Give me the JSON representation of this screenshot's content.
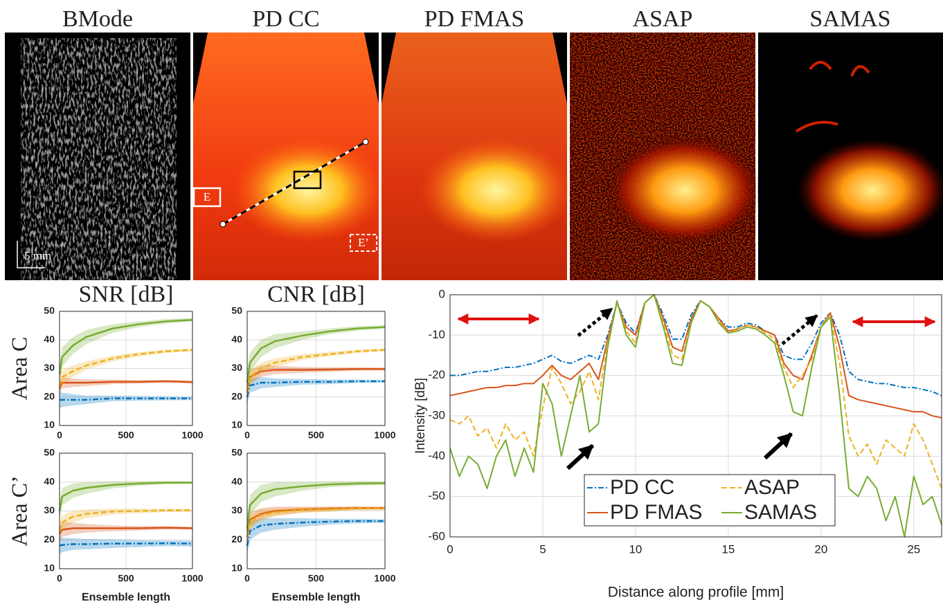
{
  "images": {
    "titles": [
      "BMode",
      "PD CC",
      "PD FMAS",
      "ASAP",
      "SAMAS"
    ],
    "scale_bar": "5 mm",
    "roi_e": "E",
    "roi_e_prime": "E’"
  },
  "chart_data": [
    {
      "type": "line",
      "title": "SNR [dB]",
      "ylabel": "Area C",
      "x": [
        0,
        20,
        100,
        200,
        400,
        600,
        800,
        1000
      ],
      "xlim": [
        0,
        1000
      ],
      "xticks": [
        0,
        500,
        1000
      ],
      "ylim": [
        10,
        50
      ],
      "yticks": [
        10,
        20,
        30,
        40,
        50
      ],
      "grid": true,
      "series": [
        {
          "color": "#0072bd",
          "style": "dashdot",
          "values": [
            19,
            19,
            19,
            19,
            19.5,
            19.5,
            19.5,
            19.5
          ],
          "spread": [
            3,
            2.5,
            2,
            1.5,
            1,
            0.8,
            0.7,
            0.6
          ]
        },
        {
          "color": "#d95319",
          "style": "solid",
          "values": [
            23,
            25,
            25,
            25,
            25.3,
            25.3,
            25.5,
            25.2
          ],
          "spread": [
            2.5,
            2,
            1.5,
            1.2,
            0.8,
            0.6,
            0.5,
            0.5
          ]
        },
        {
          "color": "#edb120",
          "style": "dashed",
          "values": [
            24,
            27,
            29,
            31,
            33.5,
            35,
            36,
            36.5
          ],
          "spread": [
            3,
            2.5,
            2,
            1.5,
            1,
            0.8,
            0.6,
            0.5
          ]
        },
        {
          "color": "#77ac30",
          "style": "solid",
          "values": [
            28,
            34,
            38,
            41,
            44,
            45.5,
            46.5,
            47
          ],
          "spread": [
            4,
            3.5,
            3,
            2.5,
            1.5,
            1,
            0.8,
            0.6
          ]
        }
      ]
    },
    {
      "type": "line",
      "title": "CNR [dB]",
      "x": [
        0,
        20,
        100,
        200,
        400,
        600,
        800,
        1000
      ],
      "xlim": [
        0,
        1000
      ],
      "xticks": [
        0,
        500,
        1000
      ],
      "ylim": [
        10,
        50
      ],
      "yticks": [
        10,
        20,
        30,
        40,
        50
      ],
      "grid": true,
      "series": [
        {
          "color": "#0072bd",
          "style": "dashdot",
          "values": [
            20,
            24,
            25,
            25,
            25.3,
            25.3,
            25.5,
            25.5
          ],
          "spread": [
            3,
            2.5,
            2,
            1.5,
            1,
            0.8,
            0.6,
            0.5
          ]
        },
        {
          "color": "#d95319",
          "style": "solid",
          "values": [
            22,
            27,
            29,
            29.5,
            29.5,
            29.6,
            29.8,
            29.8
          ],
          "spread": [
            3,
            2.5,
            2,
            1.5,
            1,
            0.8,
            0.6,
            0.5
          ]
        },
        {
          "color": "#edb120",
          "style": "dashed",
          "values": [
            22,
            27,
            30,
            32,
            34,
            35,
            36,
            36.5
          ],
          "spread": [
            3,
            2.5,
            2,
            1.5,
            1,
            0.8,
            0.6,
            0.5
          ]
        },
        {
          "color": "#77ac30",
          "style": "solid",
          "values": [
            25,
            32,
            37,
            39.5,
            41.5,
            43,
            44,
            44.5
          ],
          "spread": [
            4,
            3.5,
            3,
            2.5,
            1.5,
            1,
            0.8,
            0.6
          ]
        }
      ]
    },
    {
      "type": "line",
      "ylabel": "Area C’",
      "xlabel": "Ensemble length",
      "x": [
        0,
        20,
        100,
        200,
        400,
        600,
        800,
        1000
      ],
      "xlim": [
        0,
        1000
      ],
      "xticks": [
        0,
        500,
        1000
      ],
      "ylim": [
        10,
        50
      ],
      "yticks": [
        10,
        20,
        30,
        40,
        50
      ],
      "grid": true,
      "series": [
        {
          "color": "#0072bd",
          "style": "dashdot",
          "values": [
            18,
            18.2,
            18.5,
            18.5,
            18.7,
            18.7,
            18.8,
            18.7
          ],
          "spread": [
            3,
            2.5,
            2,
            1.8,
            1.5,
            1.2,
            1,
            1
          ]
        },
        {
          "color": "#d95319",
          "style": "solid",
          "values": [
            22,
            23.5,
            24,
            24,
            24,
            24,
            24.2,
            24
          ],
          "spread": [
            3,
            2.5,
            2,
            1.5,
            1,
            0.8,
            0.6,
            0.5
          ]
        },
        {
          "color": "#edb120",
          "style": "dashed",
          "values": [
            23,
            26,
            28,
            29,
            29.8,
            30,
            30.2,
            30.2
          ],
          "spread": [
            3,
            2.5,
            2,
            1.5,
            1,
            0.8,
            0.6,
            0.5
          ]
        },
        {
          "color": "#77ac30",
          "style": "solid",
          "values": [
            30,
            35,
            37,
            38,
            39,
            39.5,
            39.8,
            39.8
          ],
          "spread": [
            3.5,
            3,
            2.5,
            2,
            1.2,
            0.8,
            0.6,
            0.5
          ]
        }
      ]
    },
    {
      "type": "line",
      "xlabel": "Ensemble length",
      "x": [
        0,
        20,
        100,
        200,
        400,
        600,
        800,
        1000
      ],
      "xlim": [
        0,
        1000
      ],
      "xticks": [
        0,
        500,
        1000
      ],
      "ylim": [
        10,
        50
      ],
      "yticks": [
        10,
        20,
        30,
        40,
        50
      ],
      "grid": true,
      "series": [
        {
          "color": "#0072bd",
          "style": "dashdot",
          "values": [
            18,
            23,
            25,
            25.5,
            26,
            26.3,
            26.5,
            26.5
          ],
          "spread": [
            3,
            3,
            2.5,
            2,
            1.5,
            1,
            0.8,
            0.6
          ]
        },
        {
          "color": "#d95319",
          "style": "solid",
          "values": [
            21,
            27,
            29,
            30,
            30.5,
            30.8,
            31,
            31
          ],
          "spread": [
            3,
            2.5,
            2,
            1.5,
            1,
            0.8,
            0.6,
            0.5
          ]
        },
        {
          "color": "#edb120",
          "style": "dashed",
          "values": [
            21,
            26,
            28.5,
            29.5,
            30.3,
            30.5,
            30.8,
            30.8
          ],
          "spread": [
            3,
            2.5,
            2,
            1.5,
            1,
            0.8,
            0.6,
            0.5
          ]
        },
        {
          "color": "#77ac30",
          "style": "solid",
          "values": [
            24,
            32,
            36,
            37.5,
            38.5,
            39.2,
            39.5,
            39.6
          ],
          "spread": [
            4,
            3.5,
            3,
            2.5,
            1.5,
            1,
            0.8,
            0.6
          ]
        }
      ]
    },
    {
      "type": "line",
      "ylabel": "Intensity [dB]",
      "xlabel": "Distance along profile [mm]",
      "x": [
        0,
        0.5,
        1,
        1.5,
        2,
        2.5,
        3,
        3.5,
        4,
        4.5,
        5,
        5.5,
        6,
        6.5,
        7,
        7.5,
        8,
        8.5,
        9,
        9.5,
        10,
        10.5,
        11,
        11.5,
        12,
        12.5,
        13,
        13.5,
        14,
        14.5,
        15,
        15.5,
        16,
        16.5,
        17,
        17.5,
        18,
        18.5,
        19,
        19.5,
        20,
        20.5,
        21,
        21.5,
        22,
        22.5,
        23,
        23.5,
        24,
        24.5,
        25,
        25.5,
        26,
        26.5
      ],
      "xlim": [
        0,
        26.5
      ],
      "xticks": [
        0,
        5,
        10,
        15,
        20,
        25
      ],
      "ylim": [
        -60,
        0
      ],
      "yticks": [
        -60,
        -50,
        -40,
        -30,
        -20,
        -10,
        0
      ],
      "grid": true,
      "legend": "lower center",
      "series": [
        {
          "name": "PD CC",
          "color": "#0072bd",
          "style": "dashdot",
          "values": [
            -20,
            -20,
            -19.5,
            -19,
            -19,
            -18.5,
            -18,
            -18,
            -17.5,
            -17,
            -16,
            -15,
            -16.5,
            -17,
            -16,
            -15,
            -16,
            -10,
            -2,
            -7,
            -9.5,
            -2,
            0,
            -5,
            -11,
            -11,
            -5,
            -1.5,
            -3,
            -6,
            -8,
            -8,
            -7,
            -7.5,
            -9,
            -10,
            -15,
            -16,
            -16,
            -12,
            -7,
            -4.5,
            -10,
            -19,
            -21,
            -21.5,
            -22,
            -22,
            -22.5,
            -23,
            -23,
            -23.5,
            -24,
            -25
          ]
        },
        {
          "name": "PD FMAS",
          "color": "#d95319",
          "style": "solid",
          "values": [
            -25,
            -24.5,
            -24,
            -23.5,
            -23,
            -23,
            -22.5,
            -22.5,
            -22,
            -22,
            -20,
            -17.5,
            -20,
            -21,
            -19,
            -17,
            -21,
            -11,
            -2,
            -8,
            -10,
            -2,
            0,
            -6,
            -13,
            -14,
            -6,
            -1.5,
            -3,
            -6,
            -9,
            -8.5,
            -7.5,
            -8,
            -9,
            -10,
            -17,
            -20,
            -21,
            -15,
            -8,
            -4.5,
            -13,
            -25,
            -26,
            -26.5,
            -27,
            -27.5,
            -28,
            -28.5,
            -29,
            -29,
            -30,
            -30.5
          ]
        },
        {
          "name": "ASAP",
          "color": "#edb120",
          "style": "dashed",
          "values": [
            -31,
            -32,
            -30,
            -35,
            -33,
            -38,
            -32,
            -36,
            -34,
            -40,
            -28,
            -18,
            -22,
            -27,
            -24,
            -19,
            -26,
            -12,
            -2,
            -9,
            -12,
            -2,
            0,
            -7,
            -15,
            -16,
            -7,
            -1.5,
            -3,
            -6.5,
            -9.5,
            -8.5,
            -7.5,
            -8,
            -9.5,
            -11,
            -18,
            -23,
            -20,
            -16,
            -8,
            -5,
            -17,
            -35,
            -40,
            -37,
            -42,
            -36,
            -38,
            -40,
            -32,
            -36,
            -42,
            -48
          ]
        },
        {
          "name": "SAMAS",
          "color": "#77ac30",
          "style": "solid",
          "values": [
            -38,
            -45,
            -40,
            -42,
            -48,
            -40,
            -36,
            -45,
            -38,
            -44,
            -22,
            -27,
            -40,
            -30,
            -20,
            -34,
            -32,
            -13,
            -1.5,
            -10,
            -13,
            -2,
            0,
            -8,
            -17,
            -17.5,
            -7,
            -1.5,
            -3,
            -7,
            -9.5,
            -9,
            -8,
            -8.5,
            -10,
            -12,
            -20,
            -29,
            -30,
            -18,
            -8,
            -5.5,
            -25,
            -48,
            -50,
            -45,
            -48,
            -56,
            -50,
            -60,
            -45,
            -52,
            -50,
            -57
          ]
        }
      ]
    }
  ]
}
